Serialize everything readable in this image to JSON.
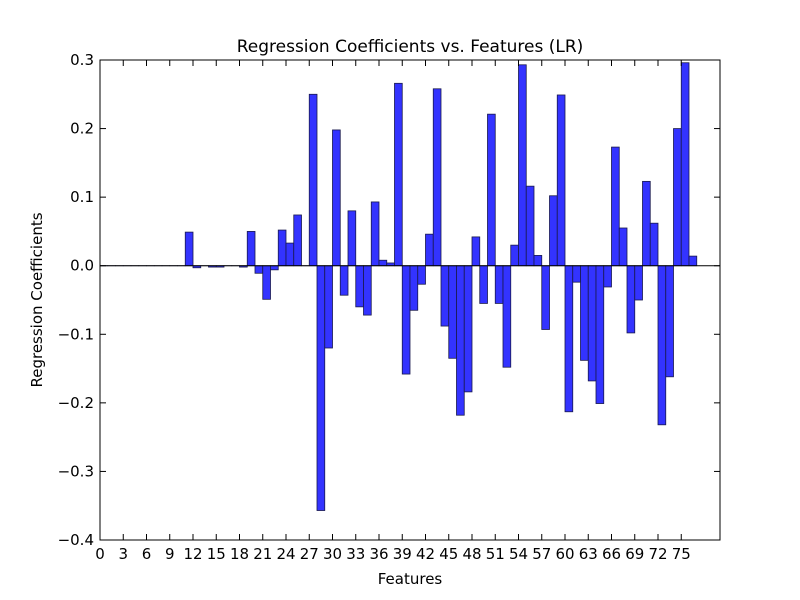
{
  "chart_data": {
    "type": "bar",
    "title": "Regression Coefficients vs. Features (LR)",
    "xlabel": "Features",
    "ylabel": "Regression Coefficients",
    "xlim": [
      0,
      80
    ],
    "ylim": [
      -0.4,
      0.3
    ],
    "x_ticks": [
      0,
      3,
      6,
      9,
      12,
      15,
      18,
      21,
      24,
      27,
      30,
      33,
      36,
      39,
      42,
      45,
      48,
      51,
      54,
      57,
      60,
      63,
      66,
      69,
      72,
      75
    ],
    "x_tick_labels": [
      "0",
      "3",
      "6",
      "9",
      "12",
      "15",
      "18",
      "21",
      "24",
      "27",
      "30",
      "33",
      "36",
      "39",
      "42",
      "45",
      "48",
      "51",
      "54",
      "57",
      "60",
      "63",
      "66",
      "69",
      "72",
      "75"
    ],
    "y_ticks": [
      -0.4,
      -0.3,
      -0.2,
      -0.1,
      0.0,
      0.1,
      0.2,
      0.3
    ],
    "y_tick_labels": [
      "−0.4",
      "−0.3",
      "−0.2",
      "−0.1",
      "0.0",
      "0.1",
      "0.2",
      "0.3"
    ],
    "grid": false,
    "bar_color": "#3333ff",
    "bar_edge_color": "#1a1a4d",
    "x": [
      0,
      1,
      2,
      3,
      4,
      5,
      6,
      7,
      8,
      9,
      10,
      11,
      12,
      13,
      14,
      15,
      16,
      17,
      18,
      19,
      20,
      21,
      22,
      23,
      24,
      25,
      26,
      27,
      28,
      29,
      30,
      31,
      32,
      33,
      34,
      35,
      36,
      37,
      38,
      39,
      40,
      41,
      42,
      43,
      44,
      45,
      46,
      47,
      48,
      49,
      50,
      51,
      52,
      53,
      54,
      55,
      56,
      57,
      58,
      59,
      60,
      61,
      62,
      63,
      64,
      65,
      66,
      67,
      68,
      69,
      70,
      71,
      72,
      73,
      74,
      75,
      76
    ],
    "values": [
      0.0,
      0.0,
      0.0,
      0.0,
      0.0,
      0.0,
      0.0,
      0.0,
      0.0,
      0.0,
      0.0,
      0.049,
      -0.003,
      0.0,
      -0.002,
      -0.002,
      0.0,
      0.0,
      -0.002,
      0.05,
      -0.011,
      -0.049,
      -0.006,
      0.052,
      0.033,
      0.074,
      0.0,
      0.25,
      -0.357,
      -0.12,
      0.198,
      -0.043,
      0.08,
      -0.06,
      -0.072,
      0.093,
      0.008,
      0.004,
      0.266,
      -0.158,
      -0.065,
      -0.027,
      0.046,
      0.258,
      -0.088,
      -0.135,
      -0.218,
      -0.184,
      0.042,
      -0.055,
      0.221,
      -0.055,
      -0.148,
      0.03,
      0.293,
      0.116,
      0.015,
      -0.093,
      0.102,
      0.249,
      -0.213,
      -0.024,
      -0.138,
      -0.168,
      -0.201,
      -0.031,
      0.173,
      0.055,
      -0.098,
      -0.05,
      0.123,
      0.062,
      -0.232,
      -0.162,
      0.2,
      0.296,
      0.014
    ]
  }
}
